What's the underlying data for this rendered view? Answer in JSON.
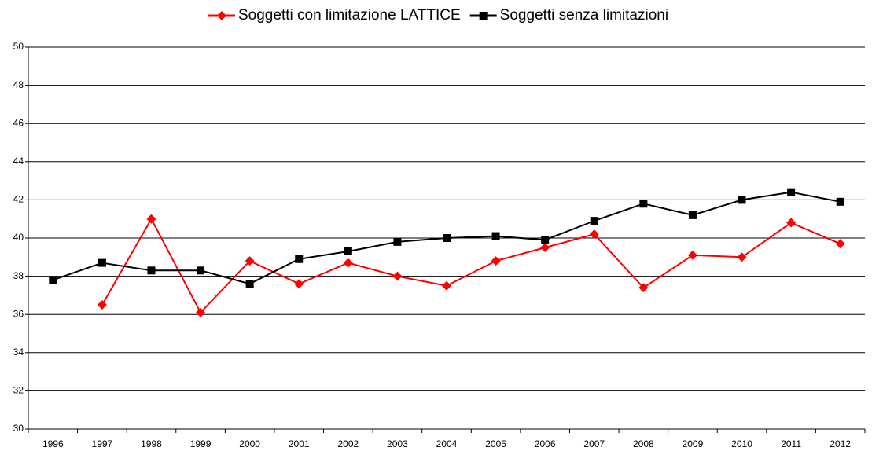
{
  "chart_data": {
    "type": "line",
    "categories": [
      "1996",
      "1997",
      "1998",
      "1999",
      "2000",
      "2001",
      "2002",
      "2003",
      "2004",
      "2005",
      "2006",
      "2007",
      "2008",
      "2009",
      "2010",
      "2011",
      "2012"
    ],
    "series": [
      {
        "name": "Soggetti con limitazione LATTICE",
        "color": "#ff0000",
        "marker": "diamond",
        "values": [
          null,
          36.5,
          41.0,
          36.1,
          38.8,
          37.6,
          38.7,
          38.0,
          37.5,
          38.8,
          39.5,
          40.2,
          37.4,
          39.1,
          39.0,
          40.8,
          39.7
        ]
      },
      {
        "name": "Soggetti senza limitazioni",
        "color": "#000000",
        "marker": "square",
        "values": [
          37.8,
          38.7,
          38.3,
          38.3,
          37.6,
          38.9,
          39.3,
          39.8,
          40.0,
          40.1,
          39.9,
          40.9,
          41.8,
          41.2,
          42.0,
          42.4,
          41.9
        ]
      }
    ],
    "ylim": [
      30,
      50
    ],
    "yticks": [
      30,
      32,
      34,
      36,
      38,
      40,
      42,
      44,
      46,
      48,
      50
    ],
    "grid": true,
    "legend": "top"
  }
}
